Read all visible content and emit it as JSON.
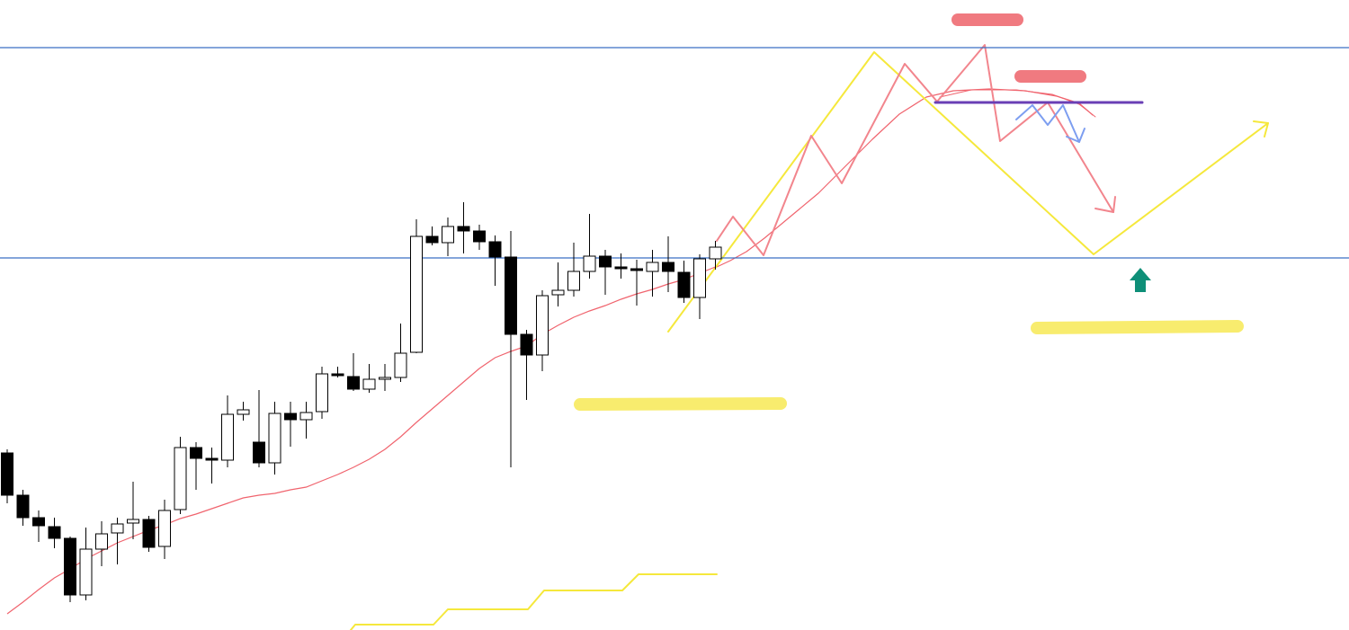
{
  "chart_data": {
    "type": "candlestick",
    "categories": [
      null,
      null,
      null,
      null,
      null,
      null,
      null,
      null,
      null,
      null,
      null,
      null,
      null,
      null,
      null,
      null,
      null,
      null,
      null,
      null,
      null,
      null,
      null,
      null,
      null,
      null,
      null,
      null,
      null,
      null,
      null,
      null,
      null,
      null,
      null,
      null,
      null,
      null,
      null,
      null,
      null,
      null,
      null,
      null,
      null,
      null
    ],
    "open": [
      197,
      150,
      125,
      115,
      102,
      39,
      90,
      108,
      119,
      123,
      93,
      134,
      203,
      191,
      189,
      240,
      209,
      186,
      241,
      234,
      243,
      285,
      282,
      268,
      279,
      281,
      309,
      438,
      431,
      449,
      444,
      432,
      415,
      329,
      306,
      373,
      378,
      399,
      416,
      404,
      402,
      399,
      409,
      398,
      370,
      413
    ],
    "high": [
      201,
      156,
      133,
      125,
      104,
      114,
      121,
      125,
      165,
      127,
      145,
      215,
      209,
      203,
      261,
      254,
      267,
      254,
      254,
      254,
      293,
      293,
      308,
      296,
      296,
      341,
      457,
      449,
      459,
      476,
      451,
      439,
      444,
      334,
      378,
      409,
      431,
      463,
      423,
      419,
      412,
      423,
      438,
      411,
      418,
      433
    ],
    "low": [
      141,
      116,
      98,
      91,
      31,
      33,
      71,
      73,
      101,
      87,
      79,
      129,
      156,
      163,
      181,
      233,
      181,
      173,
      204,
      213,
      235,
      281,
      266,
      264,
      266,
      276,
      308,
      428,
      416,
      419,
      423,
      383,
      181,
      256,
      288,
      360,
      371,
      391,
      373,
      391,
      361,
      371,
      376,
      364,
      346,
      401
    ],
    "close": [
      150,
      125,
      116,
      102,
      39,
      90,
      107,
      118,
      123,
      92,
      133,
      203,
      191,
      189,
      240,
      245,
      186,
      241,
      234,
      242,
      285,
      283,
      268,
      279,
      281,
      308,
      438,
      431,
      449,
      444,
      432,
      415,
      329,
      306,
      372,
      378,
      399,
      416,
      404,
      402,
      400,
      409,
      399,
      370,
      413,
      426
    ],
    "series": [
      {
        "color": "#f0646e",
        "values": [
          18,
          31,
          45,
          58,
          68,
          79,
          88,
          97,
          104,
          111,
          117,
          124,
          129,
          135,
          141,
          147,
          150,
          152,
          156,
          159,
          166,
          173,
          181,
          190,
          201,
          215,
          231,
          246,
          261,
          276,
          291,
          303,
          310,
          316,
          329,
          339,
          348,
          355,
          361,
          368,
          374,
          379,
          385,
          390,
          397,
          404
        ]
      }
    ],
    "hlines": [
      648,
      414
    ],
    "hline_color": "#3a6fc4",
    "up_color": "#ffffff",
    "down_color": "#000000",
    "ylim": [
      0,
      701
    ]
  }
}
